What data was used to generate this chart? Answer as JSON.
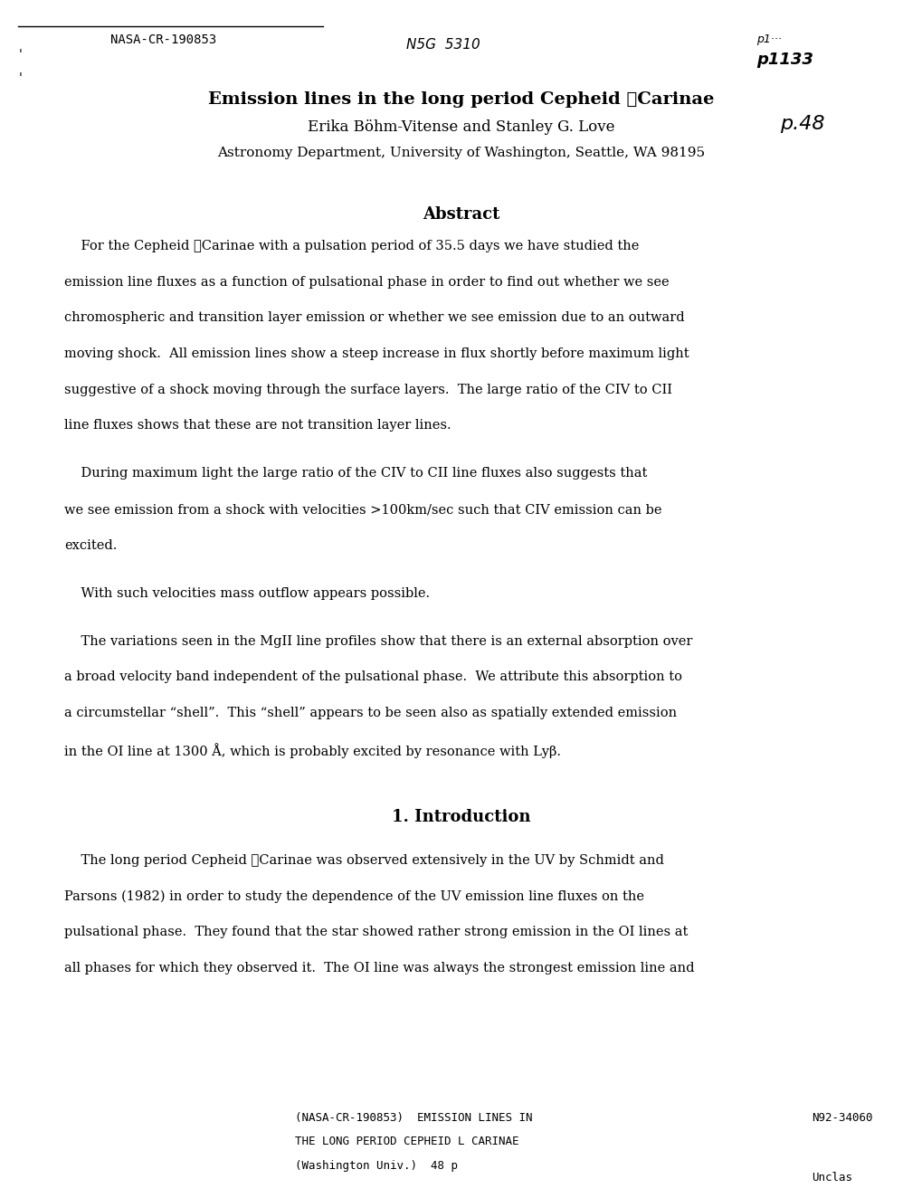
{
  "bg_color": "#ffffff",
  "header_ref": "NASA-CR-190853",
  "handwritten_center": "N5G  5310",
  "handwritten_right1": "p1133",
  "handwritten_right2": "p.48",
  "title": "Emission lines in the long period Cepheid ℓCarinae",
  "authors": "Erika Böhm-Vitense and Stanley G. Love",
  "affiliation": "Astronomy Department, University of Washington, Seattle, WA 98195",
  "abstract_heading": "Abstract",
  "abstract_text": "For the Cepheid ℓCarinae with a pulsation period of 35.5 days we have studied the emission line fluxes as a function of pulsational phase in order to find out whether we see chromospheric and transition layer emission or whether we see emission due to an outward moving shock.  All emission lines show a steep increase in flux shortly before maximum light suggestive of a shock moving through the surface layers.  The large ratio of the CIV to CII line fluxes shows that these are not transition layer lines.",
  "para2": "During maximum light the large ratio of the CIV to CII line fluxes also suggests that we see emission from a shock with velocities >100km/sec such that CIV emission can be excited.",
  "para3": "With such velocities mass outflow appears possible.",
  "para4": "The variations seen in the MgII line profiles show that there is an external absorption over a broad velocity band independent of the pulsational phase.  We attribute this absorption to a circumstellar “shell”.  This “shell” appears to be seen also as spatially extended emission in the OI line at 1300 Å, which is probably excited by resonance with Lyβ.",
  "intro_heading": "1. Introduction",
  "intro_text": "The long period Cepheid ℓCarinae was observed extensively in the UV by Schmidt and Parsons (1982) in order to study the dependence of the UV emission line fluxes on the pulsational phase.  They found that the star showed rather strong emission in the OI lines at all phases for which they observed it.  The OI line was always the strongest emission line and",
  "footer_line1": "(NASA-CR-190853)  EMISSION LINES IN",
  "footer_line2": "THE LONG PERIOD CEPHEID L CARINAE",
  "footer_line3": "(Washington Univ.)  48 p",
  "footer_right": "N92-34060",
  "footer_bottom": "Unclas",
  "top_border_line": true
}
